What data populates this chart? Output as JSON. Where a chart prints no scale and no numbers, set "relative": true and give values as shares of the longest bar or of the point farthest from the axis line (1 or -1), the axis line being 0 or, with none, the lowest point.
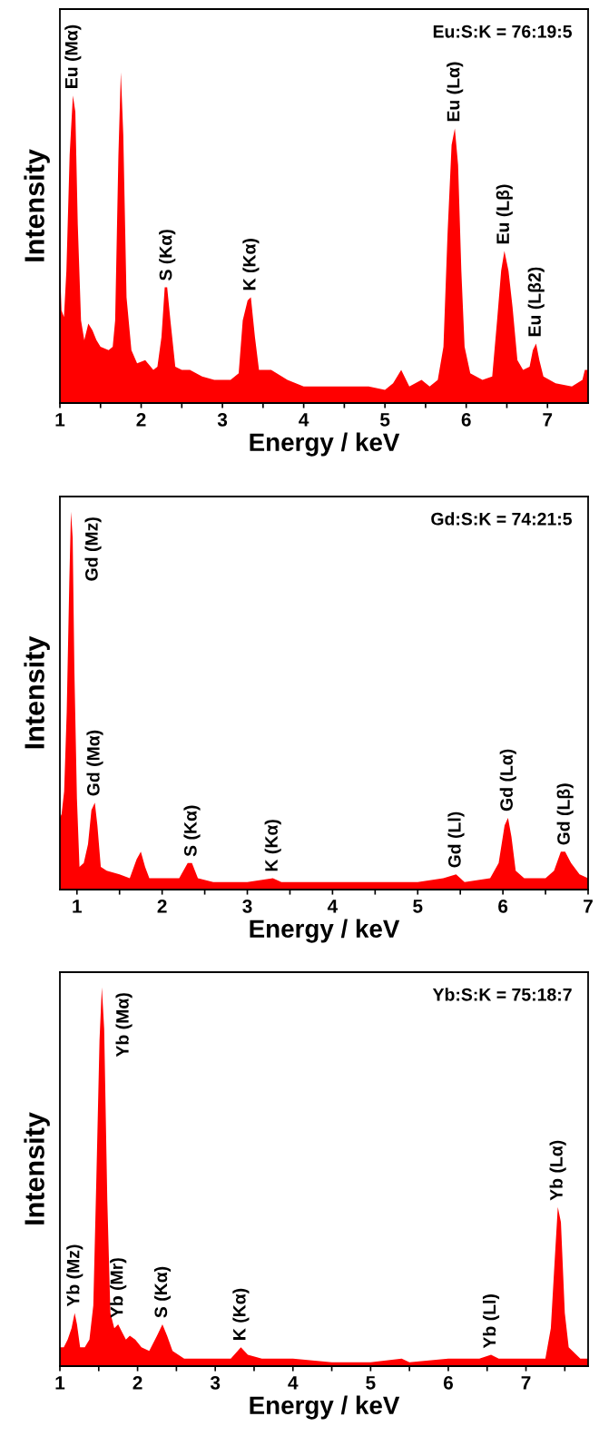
{
  "chart_data": [
    {
      "type": "area",
      "relative": true,
      "xlabel": "Energy / keV",
      "ylabel": "Intensity",
      "tick_labels": "x",
      "grid": false,
      "legend": false,
      "xlim": [
        1,
        7.5
      ],
      "xticks": [
        1,
        {
          "value": 1.5,
          "label": null
        },
        2,
        {
          "value": 2.5,
          "label": null
        },
        3,
        {
          "value": 3.5,
          "label": null
        },
        4,
        {
          "value": 4.5,
          "label": null
        },
        5,
        {
          "value": 5.5,
          "label": null
        },
        6,
        {
          "value": 6.5,
          "label": null
        },
        7
      ],
      "annotations": [
        "Eu:S:K = 76:19:5",
        {
          "text": "Eu (Mα)",
          "x": 1.16,
          "y": 0.93
        },
        {
          "text": "S (Kα)",
          "x": 2.32,
          "y": 0.35
        },
        {
          "text": "K (Kα)",
          "x": 3.35,
          "y": 0.32
        },
        {
          "text": "Eu (Lα)",
          "x": 5.86,
          "y": 0.83
        },
        {
          "text": "Eu (Lβ)",
          "x": 6.47,
          "y": 0.46
        },
        {
          "text": "Eu (Lβ2)",
          "x": 6.86,
          "y": 0.18
        }
      ],
      "series": [
        {
          "color": "#ff0000",
          "x": [
            1.0,
            1.02,
            1.05,
            1.08,
            1.12,
            1.16,
            1.19,
            1.22,
            1.26,
            1.3,
            1.35,
            1.4,
            1.45,
            1.5,
            1.6,
            1.65,
            1.68,
            1.72,
            1.75,
            1.78,
            1.82,
            1.88,
            1.95,
            2.05,
            2.15,
            2.2,
            2.25,
            2.29,
            2.32,
            2.36,
            2.42,
            2.5,
            2.6,
            2.75,
            2.9,
            3.1,
            3.2,
            3.25,
            3.31,
            3.35,
            3.4,
            3.45,
            3.6,
            3.8,
            4.0,
            4.2,
            4.5,
            4.8,
            5.0,
            5.1,
            5.2,
            5.3,
            5.45,
            5.55,
            5.65,
            5.72,
            5.77,
            5.82,
            5.86,
            5.9,
            5.94,
            5.98,
            6.05,
            6.2,
            6.32,
            6.38,
            6.43,
            6.47,
            6.52,
            6.57,
            6.63,
            6.7,
            6.78,
            6.82,
            6.86,
            6.9,
            6.95,
            7.1,
            7.3,
            7.43,
            7.46,
            7.5
          ],
          "values": [
            0.42,
            0.28,
            0.26,
            0.4,
            0.75,
            0.93,
            0.88,
            0.54,
            0.25,
            0.19,
            0.24,
            0.22,
            0.19,
            0.17,
            0.16,
            0.17,
            0.25,
            0.75,
            1.0,
            0.81,
            0.32,
            0.16,
            0.12,
            0.13,
            0.1,
            0.11,
            0.2,
            0.35,
            0.35,
            0.25,
            0.11,
            0.1,
            0.1,
            0.08,
            0.07,
            0.07,
            0.09,
            0.25,
            0.31,
            0.32,
            0.2,
            0.1,
            0.1,
            0.07,
            0.05,
            0.05,
            0.05,
            0.05,
            0.04,
            0.06,
            0.1,
            0.05,
            0.07,
            0.05,
            0.07,
            0.17,
            0.51,
            0.78,
            0.83,
            0.72,
            0.4,
            0.17,
            0.09,
            0.07,
            0.08,
            0.25,
            0.4,
            0.46,
            0.4,
            0.29,
            0.13,
            0.1,
            0.11,
            0.16,
            0.18,
            0.13,
            0.08,
            0.06,
            0.05,
            0.07,
            0.1,
            0.1
          ]
        }
      ]
    },
    {
      "type": "area",
      "relative": true,
      "xlabel": "Energy / keV",
      "ylabel": "Intensity",
      "tick_labels": "x",
      "grid": false,
      "legend": false,
      "xlim": [
        0.8,
        7
      ],
      "xticks": [
        1,
        {
          "value": 1.5,
          "label": null
        },
        2,
        {
          "value": 2.5,
          "label": null
        },
        3,
        {
          "value": 3.5,
          "label": null
        },
        4,
        {
          "value": 4.5,
          "label": null
        },
        5,
        {
          "value": 5.5,
          "label": null
        },
        6,
        {
          "value": 6.5,
          "label": null
        },
        7
      ],
      "annotations": [
        "Gd:S:K = 74:21:5",
        {
          "text": "Gd (Mz)",
          "x": 0.93,
          "y": 1.0
        },
        {
          "text": "Gd (Mα)",
          "x": 1.21,
          "y": 0.23
        },
        {
          "text": "S (Kα)",
          "x": 2.35,
          "y": 0.07
        },
        {
          "text": "K (Kα)",
          "x": 3.3,
          "y": 0.03
        },
        {
          "text": "Gd (Ll)",
          "x": 5.45,
          "y": 0.04
        },
        {
          "text": "Gd (Lα)",
          "x": 6.06,
          "y": 0.19
        },
        {
          "text": "Gd (Lβ)",
          "x": 6.73,
          "y": 0.1
        }
      ],
      "series": [
        {
          "color": "#ff0000",
          "x": [
            0.8,
            0.82,
            0.85,
            0.88,
            0.91,
            0.93,
            0.95,
            0.97,
            1.0,
            1.03,
            1.08,
            1.13,
            1.17,
            1.21,
            1.24,
            1.28,
            1.35,
            1.5,
            1.62,
            1.7,
            1.75,
            1.8,
            1.85,
            2.0,
            2.2,
            2.3,
            2.35,
            2.42,
            2.6,
            3.0,
            3.3,
            3.4,
            4.0,
            4.4,
            5.0,
            5.3,
            5.45,
            5.55,
            5.85,
            5.95,
            6.02,
            6.06,
            6.1,
            6.15,
            6.25,
            6.5,
            6.6,
            6.68,
            6.73,
            6.8,
            6.9,
            7.0
          ],
          "values": [
            0.19,
            0.2,
            0.26,
            0.47,
            0.81,
            1.0,
            0.93,
            0.58,
            0.24,
            0.06,
            0.07,
            0.12,
            0.21,
            0.23,
            0.17,
            0.06,
            0.05,
            0.04,
            0.03,
            0.08,
            0.1,
            0.06,
            0.03,
            0.03,
            0.03,
            0.07,
            0.07,
            0.03,
            0.02,
            0.02,
            0.03,
            0.02,
            0.02,
            0.02,
            0.02,
            0.03,
            0.04,
            0.02,
            0.03,
            0.07,
            0.17,
            0.19,
            0.14,
            0.05,
            0.03,
            0.03,
            0.05,
            0.1,
            0.1,
            0.07,
            0.04,
            0.03
          ]
        }
      ]
    },
    {
      "type": "area",
      "relative": true,
      "xlabel": "Energy / keV",
      "ylabel": "Intensity",
      "tick_labels": "x",
      "grid": false,
      "legend": false,
      "xlim": [
        1,
        7.8
      ],
      "xticks": [
        1,
        {
          "value": 1.5,
          "label": null
        },
        2,
        {
          "value": 2.5,
          "label": null
        },
        3,
        {
          "value": 3.5,
          "label": null
        },
        4,
        {
          "value": 4.5,
          "label": null
        },
        5,
        {
          "value": 5.5,
          "label": null
        },
        6,
        {
          "value": 6.5,
          "label": null
        },
        7,
        {
          "value": 7.5,
          "label": null
        }
      ],
      "annotations": [
        "Yb:S:K = 75:18:7",
        {
          "text": "Yb (Mz)",
          "x": 1.19,
          "y": 0.14
        },
        {
          "text": "Yb (Mα)",
          "x": 1.54,
          "y": 1.0
        },
        {
          "text": "Yb (Mr)",
          "x": 1.75,
          "y": 0.11
        },
        {
          "text": "S (Kα)",
          "x": 2.32,
          "y": 0.11
        },
        {
          "text": "K (Kα)",
          "x": 3.33,
          "y": 0.05
        },
        {
          "text": "Yb (Ll)",
          "x": 6.55,
          "y": 0.03
        },
        {
          "text": "Yb (Lα)",
          "x": 7.41,
          "y": 0.42
        }
      ],
      "series": [
        {
          "color": "#ff0000",
          "x": [
            1.0,
            1.05,
            1.1,
            1.15,
            1.19,
            1.22,
            1.26,
            1.32,
            1.38,
            1.43,
            1.47,
            1.51,
            1.54,
            1.57,
            1.61,
            1.65,
            1.7,
            1.75,
            1.8,
            1.85,
            1.9,
            1.97,
            2.05,
            2.15,
            2.25,
            2.32,
            2.38,
            2.45,
            2.6,
            3.0,
            3.2,
            3.33,
            3.42,
            3.6,
            4.0,
            4.5,
            5.0,
            5.4,
            5.5,
            6.0,
            6.4,
            6.55,
            6.65,
            7.0,
            7.25,
            7.32,
            7.37,
            7.41,
            7.45,
            7.5,
            7.55,
            7.7,
            7.8
          ],
          "values": [
            0.05,
            0.05,
            0.07,
            0.1,
            0.14,
            0.11,
            0.05,
            0.05,
            0.07,
            0.16,
            0.5,
            0.86,
            1.0,
            0.89,
            0.44,
            0.14,
            0.1,
            0.11,
            0.09,
            0.07,
            0.08,
            0.07,
            0.05,
            0.04,
            0.08,
            0.11,
            0.08,
            0.04,
            0.02,
            0.02,
            0.02,
            0.05,
            0.03,
            0.02,
            0.02,
            0.01,
            0.01,
            0.02,
            0.01,
            0.02,
            0.02,
            0.03,
            0.02,
            0.02,
            0.02,
            0.1,
            0.28,
            0.42,
            0.38,
            0.14,
            0.05,
            0.02,
            0.02
          ]
        }
      ]
    }
  ]
}
